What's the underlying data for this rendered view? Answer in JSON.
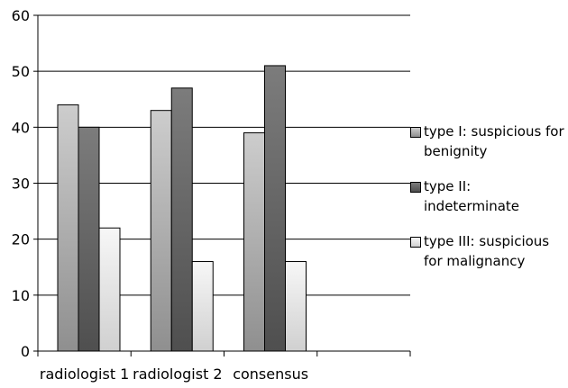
{
  "chart_data": {
    "type": "bar",
    "categories": [
      "radiologist 1",
      "radiologist 2",
      "consensus"
    ],
    "series": [
      {
        "name": "type I: suspicious for benignity",
        "values": [
          44,
          43,
          39
        ],
        "fill": "silver-gradient"
      },
      {
        "name": "type II: indeterminate",
        "values": [
          40,
          47,
          51
        ],
        "fill": "dark-gray-gradient"
      },
      {
        "name": "type III: suspicious for malignancy",
        "values": [
          22,
          16,
          16
        ],
        "fill": "light-gray-gradient"
      }
    ],
    "yticks": [
      0,
      10,
      20,
      30,
      40,
      50,
      60
    ],
    "ylim": [
      0,
      60
    ],
    "grid": true,
    "legend_position": "right",
    "title": "",
    "xlabel": "",
    "ylabel": ""
  }
}
